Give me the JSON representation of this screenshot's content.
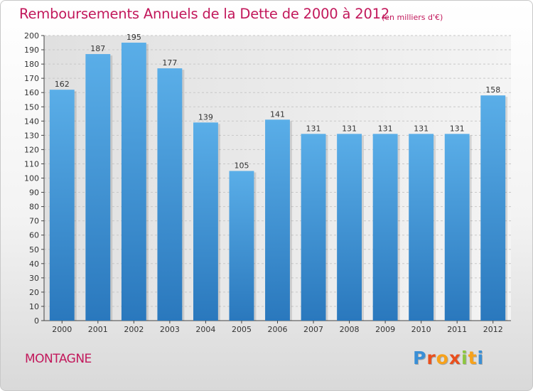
{
  "header": {
    "title": "Remboursements Annuels de la Dette de 2000 à 2012",
    "subtitle": "(en milliers d'€)"
  },
  "footer": {
    "location": "MONTAGNE",
    "logo": "Proxiti"
  },
  "colors": {
    "title": "#c2185b",
    "bar_top": "#5aaee8",
    "bar_bottom": "#2a78bd",
    "grid": "#c8c8c8",
    "axis": "#444444"
  },
  "chart_data": {
    "type": "bar",
    "categories": [
      "2000",
      "2001",
      "2002",
      "2003",
      "2004",
      "2005",
      "2006",
      "2007",
      "2008",
      "2009",
      "2010",
      "2011",
      "2012"
    ],
    "values": [
      162,
      187,
      195,
      177,
      139,
      105,
      141,
      131,
      131,
      131,
      131,
      131,
      158
    ],
    "title": "Remboursements Annuels de la Dette de 2000 à 2012",
    "subtitle": "(en milliers d'€)",
    "ylim": [
      0,
      200
    ],
    "yticks": [
      0,
      10,
      20,
      30,
      40,
      50,
      60,
      70,
      80,
      90,
      100,
      110,
      120,
      130,
      140,
      150,
      160,
      170,
      180,
      190,
      200
    ],
    "data_labels": true,
    "grid": true
  }
}
